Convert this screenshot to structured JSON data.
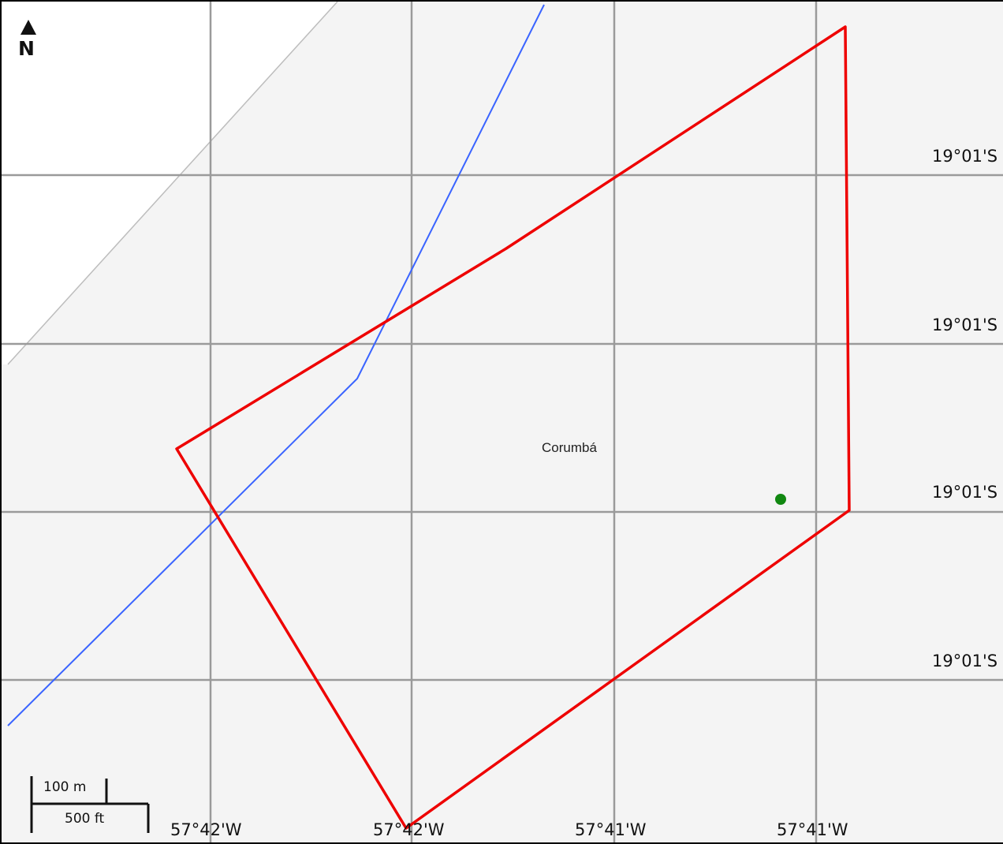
{
  "map": {
    "north_label": "N",
    "place_name": "Corumbá",
    "longitude_labels": [
      "57°42'W",
      "57°42'W",
      "57°41'W",
      "57°41'W"
    ],
    "latitude_labels": [
      "19°01'S",
      "19°01'S",
      "19°01'S",
      "19°01'S"
    ],
    "scale": {
      "metric_label": "100 m",
      "imperial_label": "500 ft"
    },
    "colors": {
      "background": "#f4f4f4",
      "outside_area": "#ffffff",
      "grid": "#9a9a9a",
      "polygon_outline": "#ee0000",
      "blue_line": "#3a64ff",
      "marker": "#118811"
    }
  }
}
